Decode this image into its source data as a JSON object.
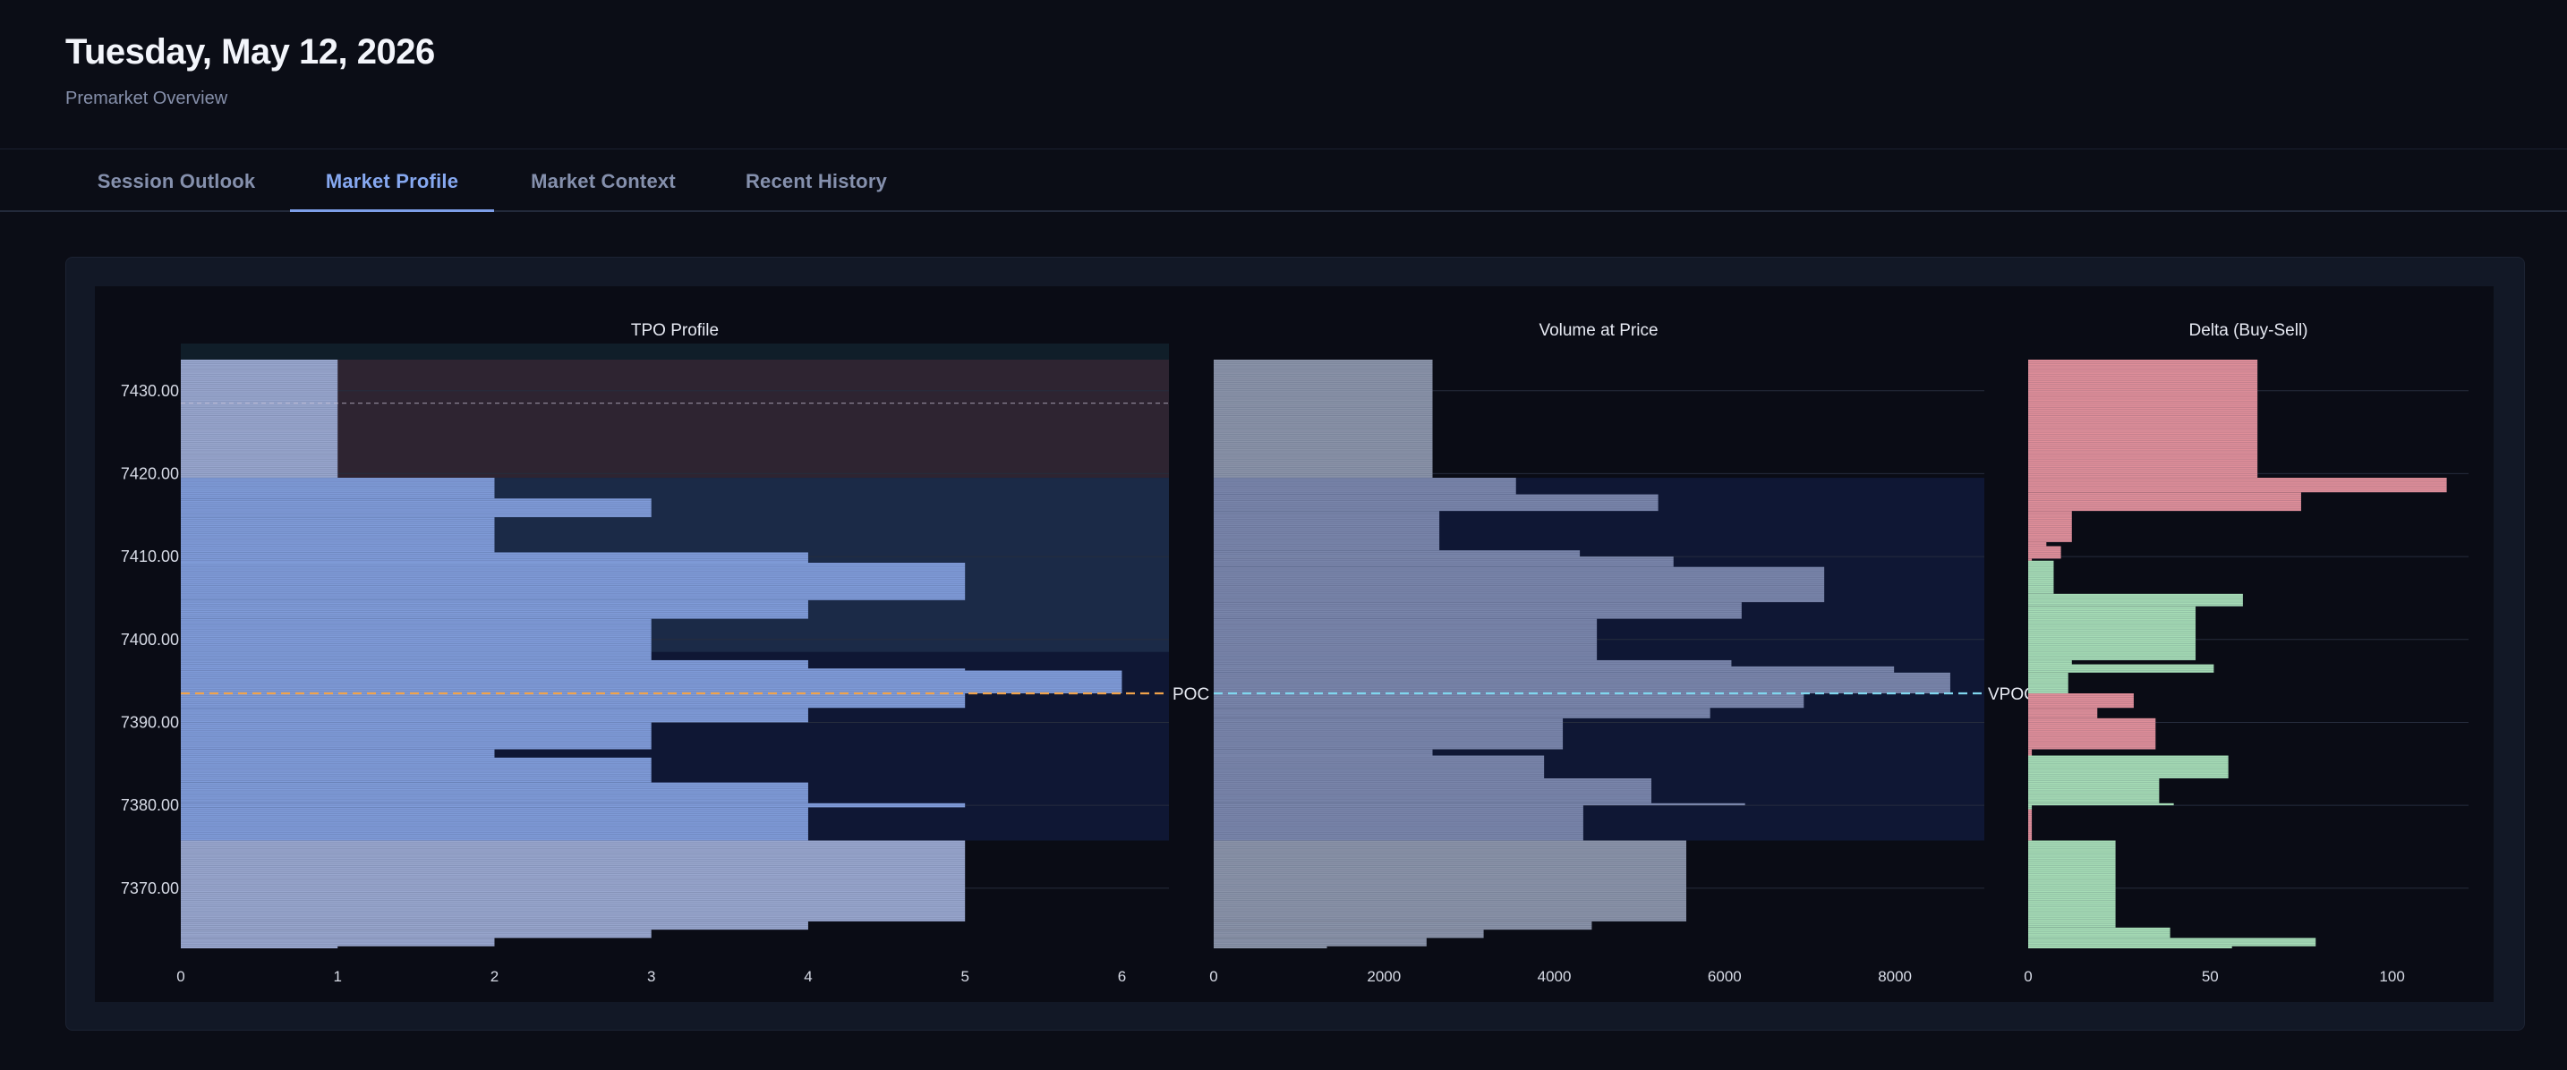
{
  "header": {
    "title": "Tuesday, May 12, 2026",
    "subtitle": "Premarket Overview"
  },
  "tabs": [
    {
      "label": "Session Outlook",
      "active": false
    },
    {
      "label": "Market Profile",
      "active": true
    },
    {
      "label": "Market Context",
      "active": false
    },
    {
      "label": "Recent History",
      "active": false
    }
  ],
  "colors": {
    "tpo_bar": "#7f9bd8",
    "tpo_bar_outside": "#98a6cd",
    "volume_bar": "#7985aa",
    "volume_bar_outside": "#8a93a8",
    "delta_positive": "#a5dbb5",
    "delta_negative": "#df8e99",
    "value_area_fill": "#0f1734",
    "upper_zone_fill": "#1b2a47",
    "top_zone_fill": "#2e2431",
    "poc_line": "#f0a24a",
    "vpoc_line": "#7fd6ee"
  },
  "chart_data": [
    {
      "type": "bar",
      "orientation": "horizontal",
      "title": "TPO Profile",
      "price_axis_ticks": [
        "7430.00",
        "7420.00",
        "7410.00",
        "7400.00",
        "7390.00",
        "7380.00",
        "7370.00"
      ],
      "price_ticks": [
        7430,
        7420,
        7410,
        7400,
        7390,
        7380,
        7370
      ],
      "price_range": [
        7362.75,
        7433.75
      ],
      "price_step": 0.25,
      "x_ticks": [
        0,
        1,
        2,
        3,
        4,
        5,
        6
      ],
      "xlim": [
        0,
        6.3
      ],
      "segments": [
        {
          "from": 7433.75,
          "to": 7419.5,
          "value": 1
        },
        {
          "from": 7419.5,
          "to": 7417.0,
          "value": 2
        },
        {
          "from": 7417.0,
          "to": 7414.75,
          "value": 3
        },
        {
          "from": 7414.75,
          "to": 7410.5,
          "value": 2
        },
        {
          "from": 7410.5,
          "to": 7409.25,
          "value": 4
        },
        {
          "from": 7409.25,
          "to": 7404.75,
          "value": 5
        },
        {
          "from": 7404.75,
          "to": 7402.5,
          "value": 4
        },
        {
          "from": 7402.5,
          "to": 7397.5,
          "value": 3
        },
        {
          "from": 7397.5,
          "to": 7396.5,
          "value": 4
        },
        {
          "from": 7396.5,
          "to": 7396.25,
          "value": 5
        },
        {
          "from": 7396.25,
          "to": 7393.5,
          "value": 6
        },
        {
          "from": 7393.5,
          "to": 7391.75,
          "value": 5
        },
        {
          "from": 7391.75,
          "to": 7390.0,
          "value": 4
        },
        {
          "from": 7390.0,
          "to": 7386.75,
          "value": 3
        },
        {
          "from": 7386.75,
          "to": 7385.75,
          "value": 2
        },
        {
          "from": 7385.75,
          "to": 7382.75,
          "value": 3
        },
        {
          "from": 7382.75,
          "to": 7380.25,
          "value": 4
        },
        {
          "from": 7380.25,
          "to": 7379.75,
          "value": 5
        },
        {
          "from": 7379.75,
          "to": 7375.75,
          "value": 4
        },
        {
          "from": 7375.75,
          "to": 7366.0,
          "value": 5
        },
        {
          "from": 7366.0,
          "to": 7365.0,
          "value": 4
        },
        {
          "from": 7365.0,
          "to": 7364.0,
          "value": 3
        },
        {
          "from": 7364.0,
          "to": 7363.0,
          "value": 2
        },
        {
          "from": 7363.0,
          "to": 7362.75,
          "value": 1
        }
      ],
      "value_area": [
        7375.75,
        7419.5
      ],
      "upper_zone": [
        7398.5,
        7419.5
      ],
      "top_zone": [
        7419.5,
        7433.75
      ],
      "dashed_level": 7428.5,
      "poc": {
        "label": "POC",
        "price": 7393.5
      }
    },
    {
      "type": "bar",
      "orientation": "horizontal",
      "title": "Volume at Price",
      "x_ticks": [
        0,
        2000,
        4000,
        6000,
        8000
      ],
      "xlim": [
        0,
        9050
      ],
      "segments": [
        {
          "from": 7433.75,
          "to": 7419.5,
          "value": 2570
        },
        {
          "from": 7419.5,
          "to": 7417.5,
          "value": 3550
        },
        {
          "from": 7417.5,
          "to": 7415.5,
          "value": 5220
        },
        {
          "from": 7415.5,
          "to": 7410.75,
          "value": 2650
        },
        {
          "from": 7410.75,
          "to": 7410.0,
          "value": 4300
        },
        {
          "from": 7410.0,
          "to": 7408.75,
          "value": 5400
        },
        {
          "from": 7408.75,
          "to": 7404.5,
          "value": 7170
        },
        {
          "from": 7404.5,
          "to": 7402.5,
          "value": 6200
        },
        {
          "from": 7402.5,
          "to": 7397.5,
          "value": 4500
        },
        {
          "from": 7397.5,
          "to": 7396.75,
          "value": 6080
        },
        {
          "from": 7396.75,
          "to": 7396.0,
          "value": 7990
        },
        {
          "from": 7396.0,
          "to": 7393.5,
          "value": 8650
        },
        {
          "from": 7393.5,
          "to": 7391.75,
          "value": 6930
        },
        {
          "from": 7391.75,
          "to": 7390.5,
          "value": 5830
        },
        {
          "from": 7390.5,
          "to": 7386.75,
          "value": 4100
        },
        {
          "from": 7386.75,
          "to": 7386.0,
          "value": 2570
        },
        {
          "from": 7386.0,
          "to": 7383.25,
          "value": 3880
        },
        {
          "from": 7383.25,
          "to": 7380.25,
          "value": 5140
        },
        {
          "from": 7380.25,
          "to": 7380.0,
          "value": 6240
        },
        {
          "from": 7380.0,
          "to": 7375.75,
          "value": 4340
        },
        {
          "from": 7375.75,
          "to": 7366.0,
          "value": 5550
        },
        {
          "from": 7366.0,
          "to": 7365.0,
          "value": 4440
        },
        {
          "from": 7365.0,
          "to": 7364.0,
          "value": 3170
        },
        {
          "from": 7364.0,
          "to": 7363.0,
          "value": 2500
        },
        {
          "from": 7363.0,
          "to": 7362.75,
          "value": 1330
        }
      ],
      "poc": {
        "label": "VPOC",
        "price": 7393.5
      }
    },
    {
      "type": "bar",
      "orientation": "horizontal",
      "title": "Delta (Buy-Sell)",
      "x_ticks": [
        0,
        50,
        100
      ],
      "xlim": [
        0,
        121
      ],
      "segments": [
        {
          "from": 7433.75,
          "to": 7419.5,
          "value": 63,
          "sign": "negative"
        },
        {
          "from": 7419.5,
          "to": 7417.75,
          "value": 115,
          "sign": "negative"
        },
        {
          "from": 7417.75,
          "to": 7415.5,
          "value": 75,
          "sign": "negative"
        },
        {
          "from": 7415.5,
          "to": 7411.75,
          "value": 12,
          "sign": "negative"
        },
        {
          "from": 7411.75,
          "to": 7411.25,
          "value": 5,
          "sign": "negative"
        },
        {
          "from": 7411.25,
          "to": 7409.75,
          "value": 9,
          "sign": "negative"
        },
        {
          "from": 7409.75,
          "to": 7409.5,
          "value": 1,
          "sign": "negative"
        },
        {
          "from": 7409.5,
          "to": 7405.5,
          "value": 7,
          "sign": "positive"
        },
        {
          "from": 7405.5,
          "to": 7404.0,
          "value": 59,
          "sign": "positive"
        },
        {
          "from": 7404.0,
          "to": 7397.5,
          "value": 46,
          "sign": "positive"
        },
        {
          "from": 7397.5,
          "to": 7397.0,
          "value": 12,
          "sign": "positive"
        },
        {
          "from": 7397.0,
          "to": 7396.0,
          "value": 51,
          "sign": "positive"
        },
        {
          "from": 7396.0,
          "to": 7393.5,
          "value": 11,
          "sign": "positive"
        },
        {
          "from": 7393.5,
          "to": 7391.75,
          "value": 29,
          "sign": "negative"
        },
        {
          "from": 7391.75,
          "to": 7390.5,
          "value": 19,
          "sign": "negative"
        },
        {
          "from": 7390.5,
          "to": 7386.75,
          "value": 35,
          "sign": "negative"
        },
        {
          "from": 7386.75,
          "to": 7386.0,
          "value": 1,
          "sign": "negative"
        },
        {
          "from": 7386.0,
          "to": 7383.25,
          "value": 55,
          "sign": "positive"
        },
        {
          "from": 7383.25,
          "to": 7380.25,
          "value": 36,
          "sign": "positive"
        },
        {
          "from": 7380.25,
          "to": 7380.0,
          "value": 40,
          "sign": "positive"
        },
        {
          "from": 7380.0,
          "to": 7379.5,
          "value": 1,
          "sign": "positive"
        },
        {
          "from": 7379.5,
          "to": 7375.75,
          "value": 1,
          "sign": "negative"
        },
        {
          "from": 7375.75,
          "to": 7365.25,
          "value": 24,
          "sign": "positive"
        },
        {
          "from": 7365.25,
          "to": 7364.0,
          "value": 39,
          "sign": "positive"
        },
        {
          "from": 7364.0,
          "to": 7363.0,
          "value": 79,
          "sign": "positive"
        },
        {
          "from": 7363.0,
          "to": 7362.75,
          "value": 56,
          "sign": "positive"
        }
      ]
    }
  ]
}
